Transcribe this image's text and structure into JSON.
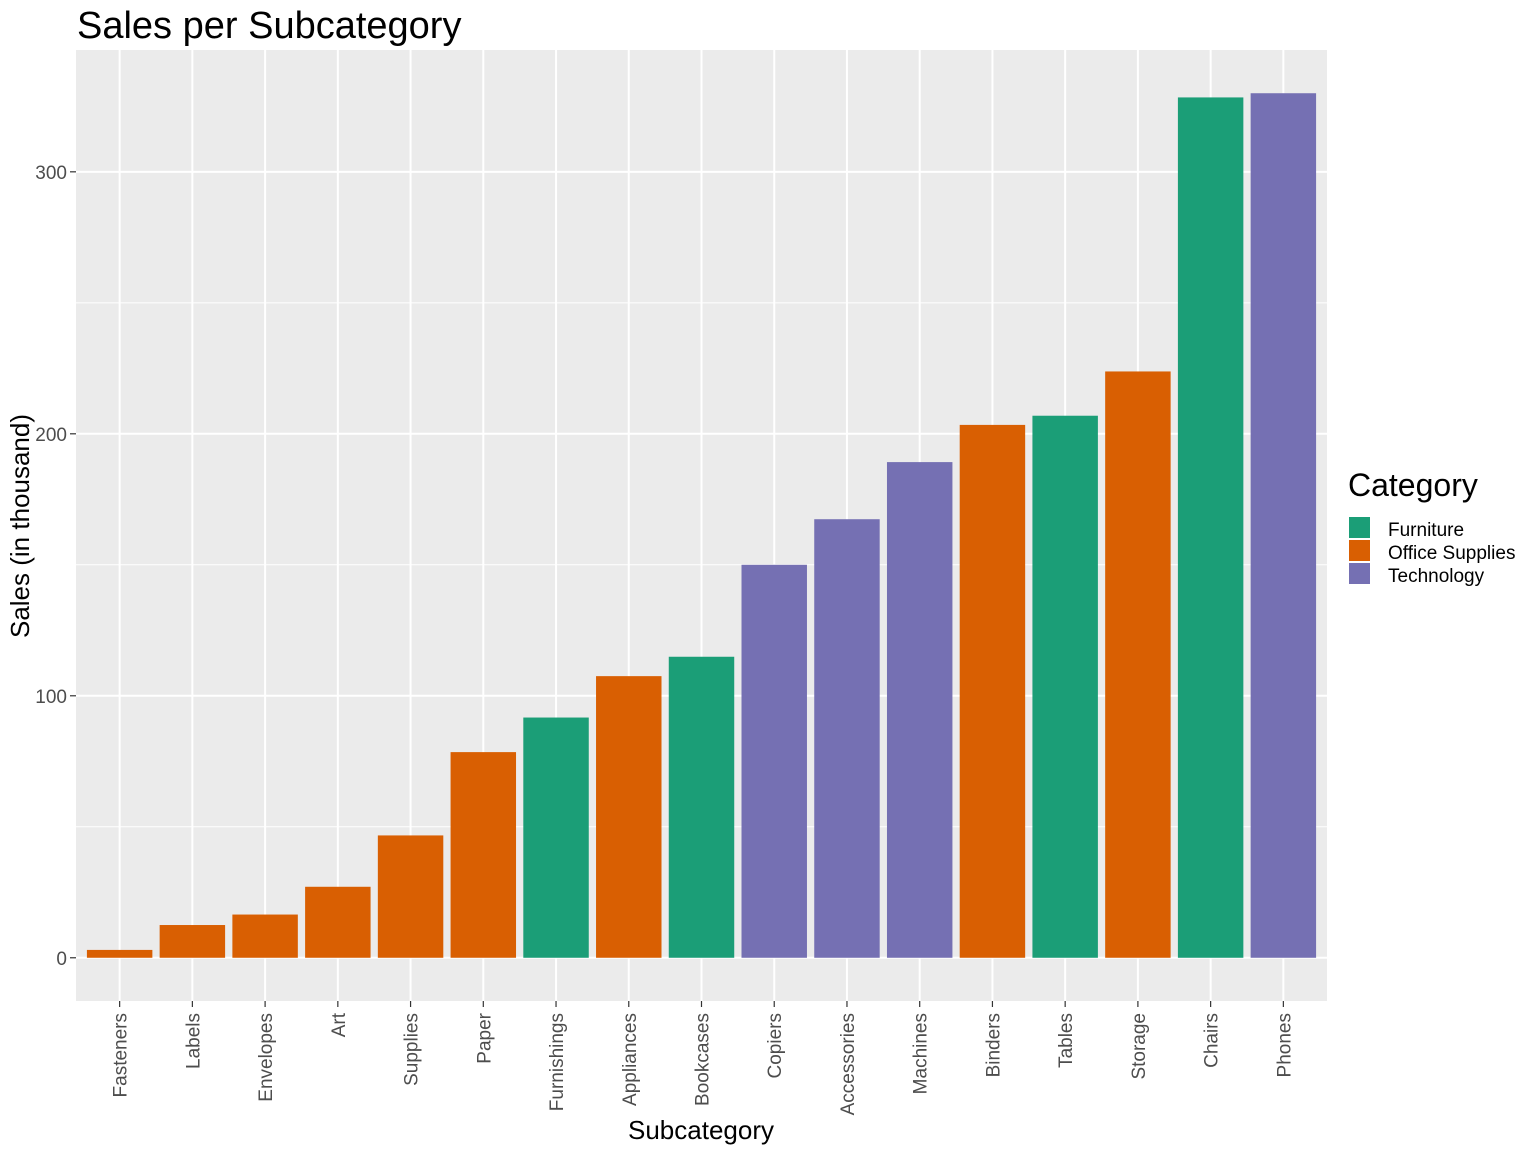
{
  "chart_data": {
    "type": "bar",
    "title": "Sales per Subcategory",
    "xlabel": "Subcategory",
    "ylabel": "Sales (in thousand)",
    "ylim": [
      -16.5,
      346.5
    ],
    "yticks": [
      0,
      100,
      200,
      300
    ],
    "grid": true,
    "legend": {
      "title": "Category",
      "position": "right",
      "entries": [
        {
          "name": "Furniture",
          "color": "#1b9e77"
        },
        {
          "name": "Office Supplies",
          "color": "#d95f02"
        },
        {
          "name": "Technology",
          "color": "#7570b3"
        }
      ]
    },
    "categories": [
      "Fasteners",
      "Labels",
      "Envelopes",
      "Art",
      "Supplies",
      "Paper",
      "Furnishings",
      "Appliances",
      "Bookcases",
      "Copiers",
      "Accessories",
      "Machines",
      "Binders",
      "Tables",
      "Storage",
      "Chairs",
      "Phones"
    ],
    "category_group": [
      "Office Supplies",
      "Office Supplies",
      "Office Supplies",
      "Office Supplies",
      "Office Supplies",
      "Office Supplies",
      "Furniture",
      "Office Supplies",
      "Furniture",
      "Technology",
      "Technology",
      "Technology",
      "Office Supplies",
      "Furniture",
      "Office Supplies",
      "Furniture",
      "Technology"
    ],
    "values": [
      3.0,
      12.5,
      16.5,
      27.1,
      46.7,
      78.5,
      91.7,
      107.5,
      114.9,
      150.0,
      167.4,
      189.2,
      203.4,
      206.9,
      223.8,
      328.4,
      330.0
    ]
  }
}
